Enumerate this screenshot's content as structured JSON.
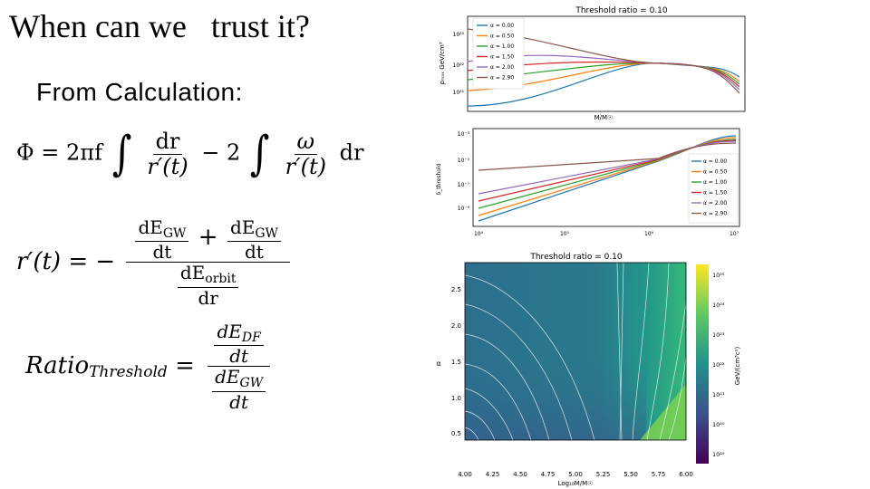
{
  "slide": {
    "title": "When can we   trust it?",
    "subtitle": "From Calculation:"
  },
  "equations": {
    "phi": {
      "lhs": "Φ = 2πf",
      "minus": "− 2",
      "dr": "dr",
      "rprime_t": "r′(t)",
      "omega": "ω",
      "dr_tail": "dr"
    },
    "rprime": {
      "lhs": "r′(t) = −",
      "dE": "dE",
      "GW": "GW",
      "dt": "dt",
      "plus": "+",
      "orbit": "orbit",
      "dr": "dr"
    },
    "ratio": {
      "lhs": "Ratio",
      "sub": "Threshold",
      "eq": "=",
      "dE": "dE",
      "DF": "DF",
      "GW": "GW",
      "dt": "dt"
    }
  },
  "charts": {
    "top": {
      "title": "Threshold ratio  = 0.10",
      "ylabel": "ρₘₐₓ GeV/cm³",
      "xlabel": "M/M☉",
      "yticks": [
        "10²³",
        "10²²",
        "10²¹"
      ],
      "legend": [
        "α = 0.00",
        "α = 0.50",
        "α = 1.00",
        "α = 1.50",
        "α = 2.00",
        "α = 2.90"
      ],
      "colors": [
        "#1f77b4",
        "#ff7f0e",
        "#2ca02c",
        "#d62728",
        "#9467bd",
        "#8c564b"
      ]
    },
    "middle": {
      "ylabel": "δ_threshold",
      "yticks": [
        "10⁻³",
        "10⁻⁵",
        "10⁻⁷",
        "10⁻⁹"
      ],
      "xticks": [
        "10⁴",
        "10⁵",
        "10⁶",
        "10⁷"
      ],
      "legend": [
        "α = 0.00",
        "α = 0.50",
        "α = 1.00",
        "α = 1.50",
        "α = 2.00",
        "α = 2.90"
      ]
    },
    "bottom": {
      "title": "Threshold ratio  = 0.10",
      "ylabel": "α",
      "xlabel": "Log₁₀M/M☉",
      "xticks": [
        "4.00",
        "4.25",
        "4.50",
        "4.75",
        "5.00",
        "5.25",
        "5.50",
        "5.75",
        "6.00"
      ],
      "yticks": [
        "2.5",
        "2.0",
        "1.5",
        "1.0",
        "0.5"
      ],
      "colorbar_label": "GeV/(cm³c²)",
      "colorbar_ticks": [
        "10²⁵",
        "10²⁴",
        "10²³",
        "10²²",
        "10²¹",
        "10²⁰",
        "10¹⁹"
      ]
    }
  }
}
